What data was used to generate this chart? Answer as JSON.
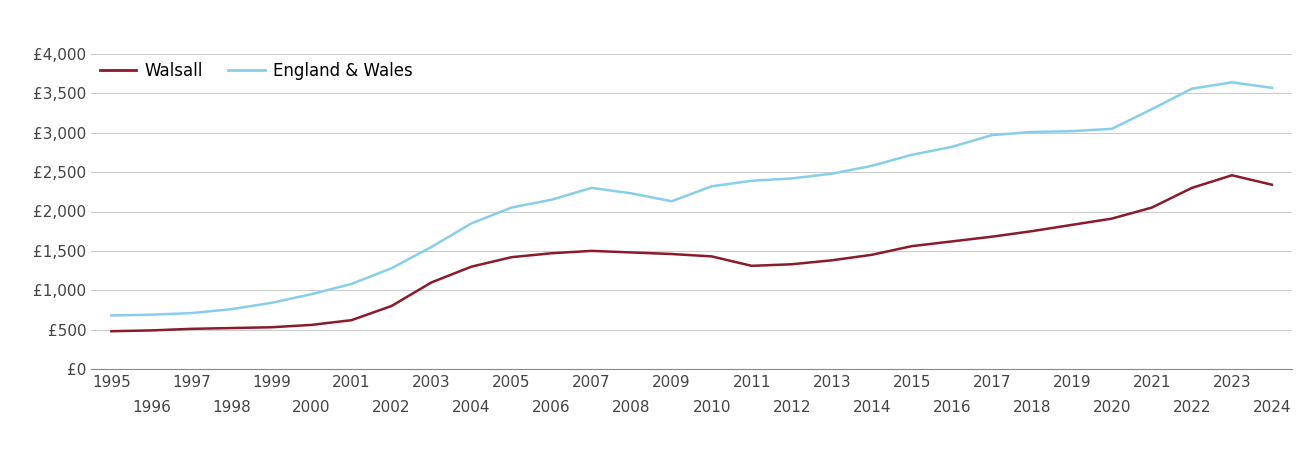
{
  "years": [
    1995,
    1996,
    1997,
    1998,
    1999,
    2000,
    2001,
    2002,
    2003,
    2004,
    2005,
    2006,
    2007,
    2008,
    2009,
    2010,
    2011,
    2012,
    2013,
    2014,
    2015,
    2016,
    2017,
    2018,
    2019,
    2020,
    2021,
    2022,
    2023,
    2024
  ],
  "walsall": [
    480,
    490,
    510,
    520,
    530,
    560,
    620,
    800,
    1100,
    1300,
    1420,
    1470,
    1500,
    1480,
    1460,
    1430,
    1310,
    1330,
    1380,
    1450,
    1560,
    1620,
    1680,
    1750,
    1830,
    1910,
    2050,
    2300,
    2460,
    2340
  ],
  "england_wales": [
    680,
    690,
    710,
    760,
    840,
    950,
    1080,
    1280,
    1550,
    1850,
    2050,
    2150,
    2300,
    2230,
    2130,
    2320,
    2390,
    2420,
    2480,
    2580,
    2720,
    2820,
    2970,
    3010,
    3020,
    3050,
    3300,
    3560,
    3640,
    3570
  ],
  "walsall_color": "#8B1A2A",
  "england_wales_color": "#87CEEB",
  "walsall_label": "Walsall",
  "england_wales_label": "England & Wales",
  "ylim": [
    0,
    4000
  ],
  "yticks": [
    0,
    500,
    1000,
    1500,
    2000,
    2500,
    3000,
    3500,
    4000
  ],
  "ytick_labels": [
    "£0",
    "£500",
    "£1,000",
    "£1,500",
    "£2,000",
    "£2,500",
    "£3,000",
    "£3,500",
    "£4,000"
  ],
  "xticks_odd": [
    1995,
    1997,
    1999,
    2001,
    2003,
    2005,
    2007,
    2009,
    2011,
    2013,
    2015,
    2017,
    2019,
    2021,
    2023
  ],
  "xticks_even": [
    1996,
    1998,
    2000,
    2002,
    2004,
    2006,
    2008,
    2010,
    2012,
    2014,
    2016,
    2018,
    2020,
    2022,
    2024
  ],
  "line_width": 1.8,
  "background_color": "#ffffff",
  "grid_color": "#cccccc",
  "tick_fontsize": 11,
  "legend_fontsize": 12
}
